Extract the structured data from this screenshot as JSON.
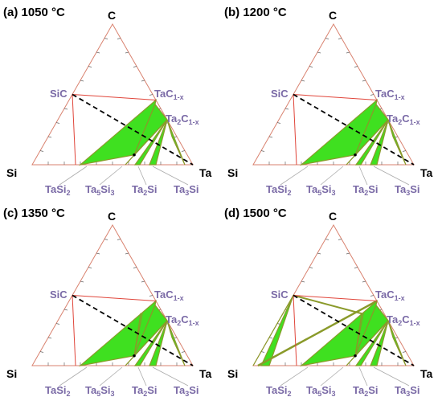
{
  "panels": [
    {
      "title": "(a) 1050 °C"
    },
    {
      "title": "(b) 1200 °C"
    },
    {
      "title": "(c) 1350 °C"
    },
    {
      "title": "(d) 1500 °C"
    }
  ],
  "vertices": {
    "top": "C",
    "left": "Si",
    "right": "Ta"
  },
  "phases": {
    "SiC": [
      "SiC"
    ],
    "TaC": [
      "TaC",
      "1-x"
    ],
    "Ta2C": [
      "Ta",
      "2",
      "C",
      "1-x"
    ],
    "TaSi2": [
      "TaSi",
      "2"
    ],
    "Ta5Si3": [
      "Ta",
      "5",
      "Si",
      "3"
    ],
    "Ta2Si": [
      "Ta",
      "2",
      "Si"
    ],
    "Ta3Si": [
      "Ta",
      "3",
      "Si"
    ]
  }
}
